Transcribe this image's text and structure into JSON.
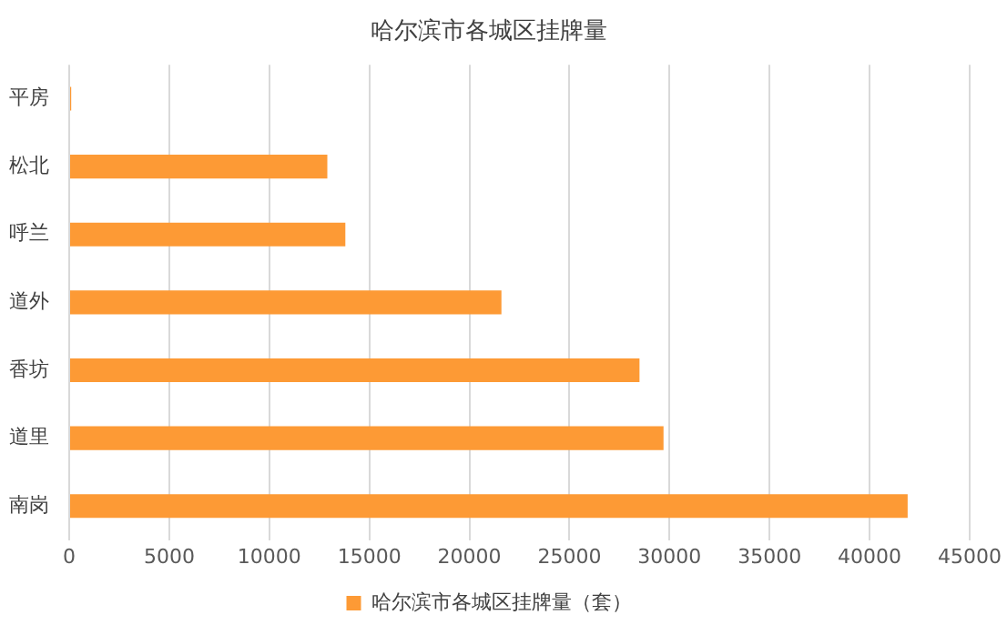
{
  "chart_data": {
    "type": "bar",
    "orientation": "horizontal",
    "title": "哈尔滨市各城区挂牌量",
    "categories": [
      "平房",
      "松北",
      "呼兰",
      "道外",
      "香坊",
      "道里",
      "南岗"
    ],
    "series": [
      {
        "name": "哈尔滨市各城区挂牌量（套）",
        "color": "#fd9a35",
        "values": [
          100,
          12900,
          13800,
          21600,
          28500,
          29700,
          41900
        ]
      }
    ],
    "xlim": [
      0,
      45000
    ],
    "xticks": [
      0,
      5000,
      10000,
      15000,
      20000,
      25000,
      30000,
      35000,
      40000,
      45000
    ],
    "grid": "x",
    "legend": "bottom"
  }
}
